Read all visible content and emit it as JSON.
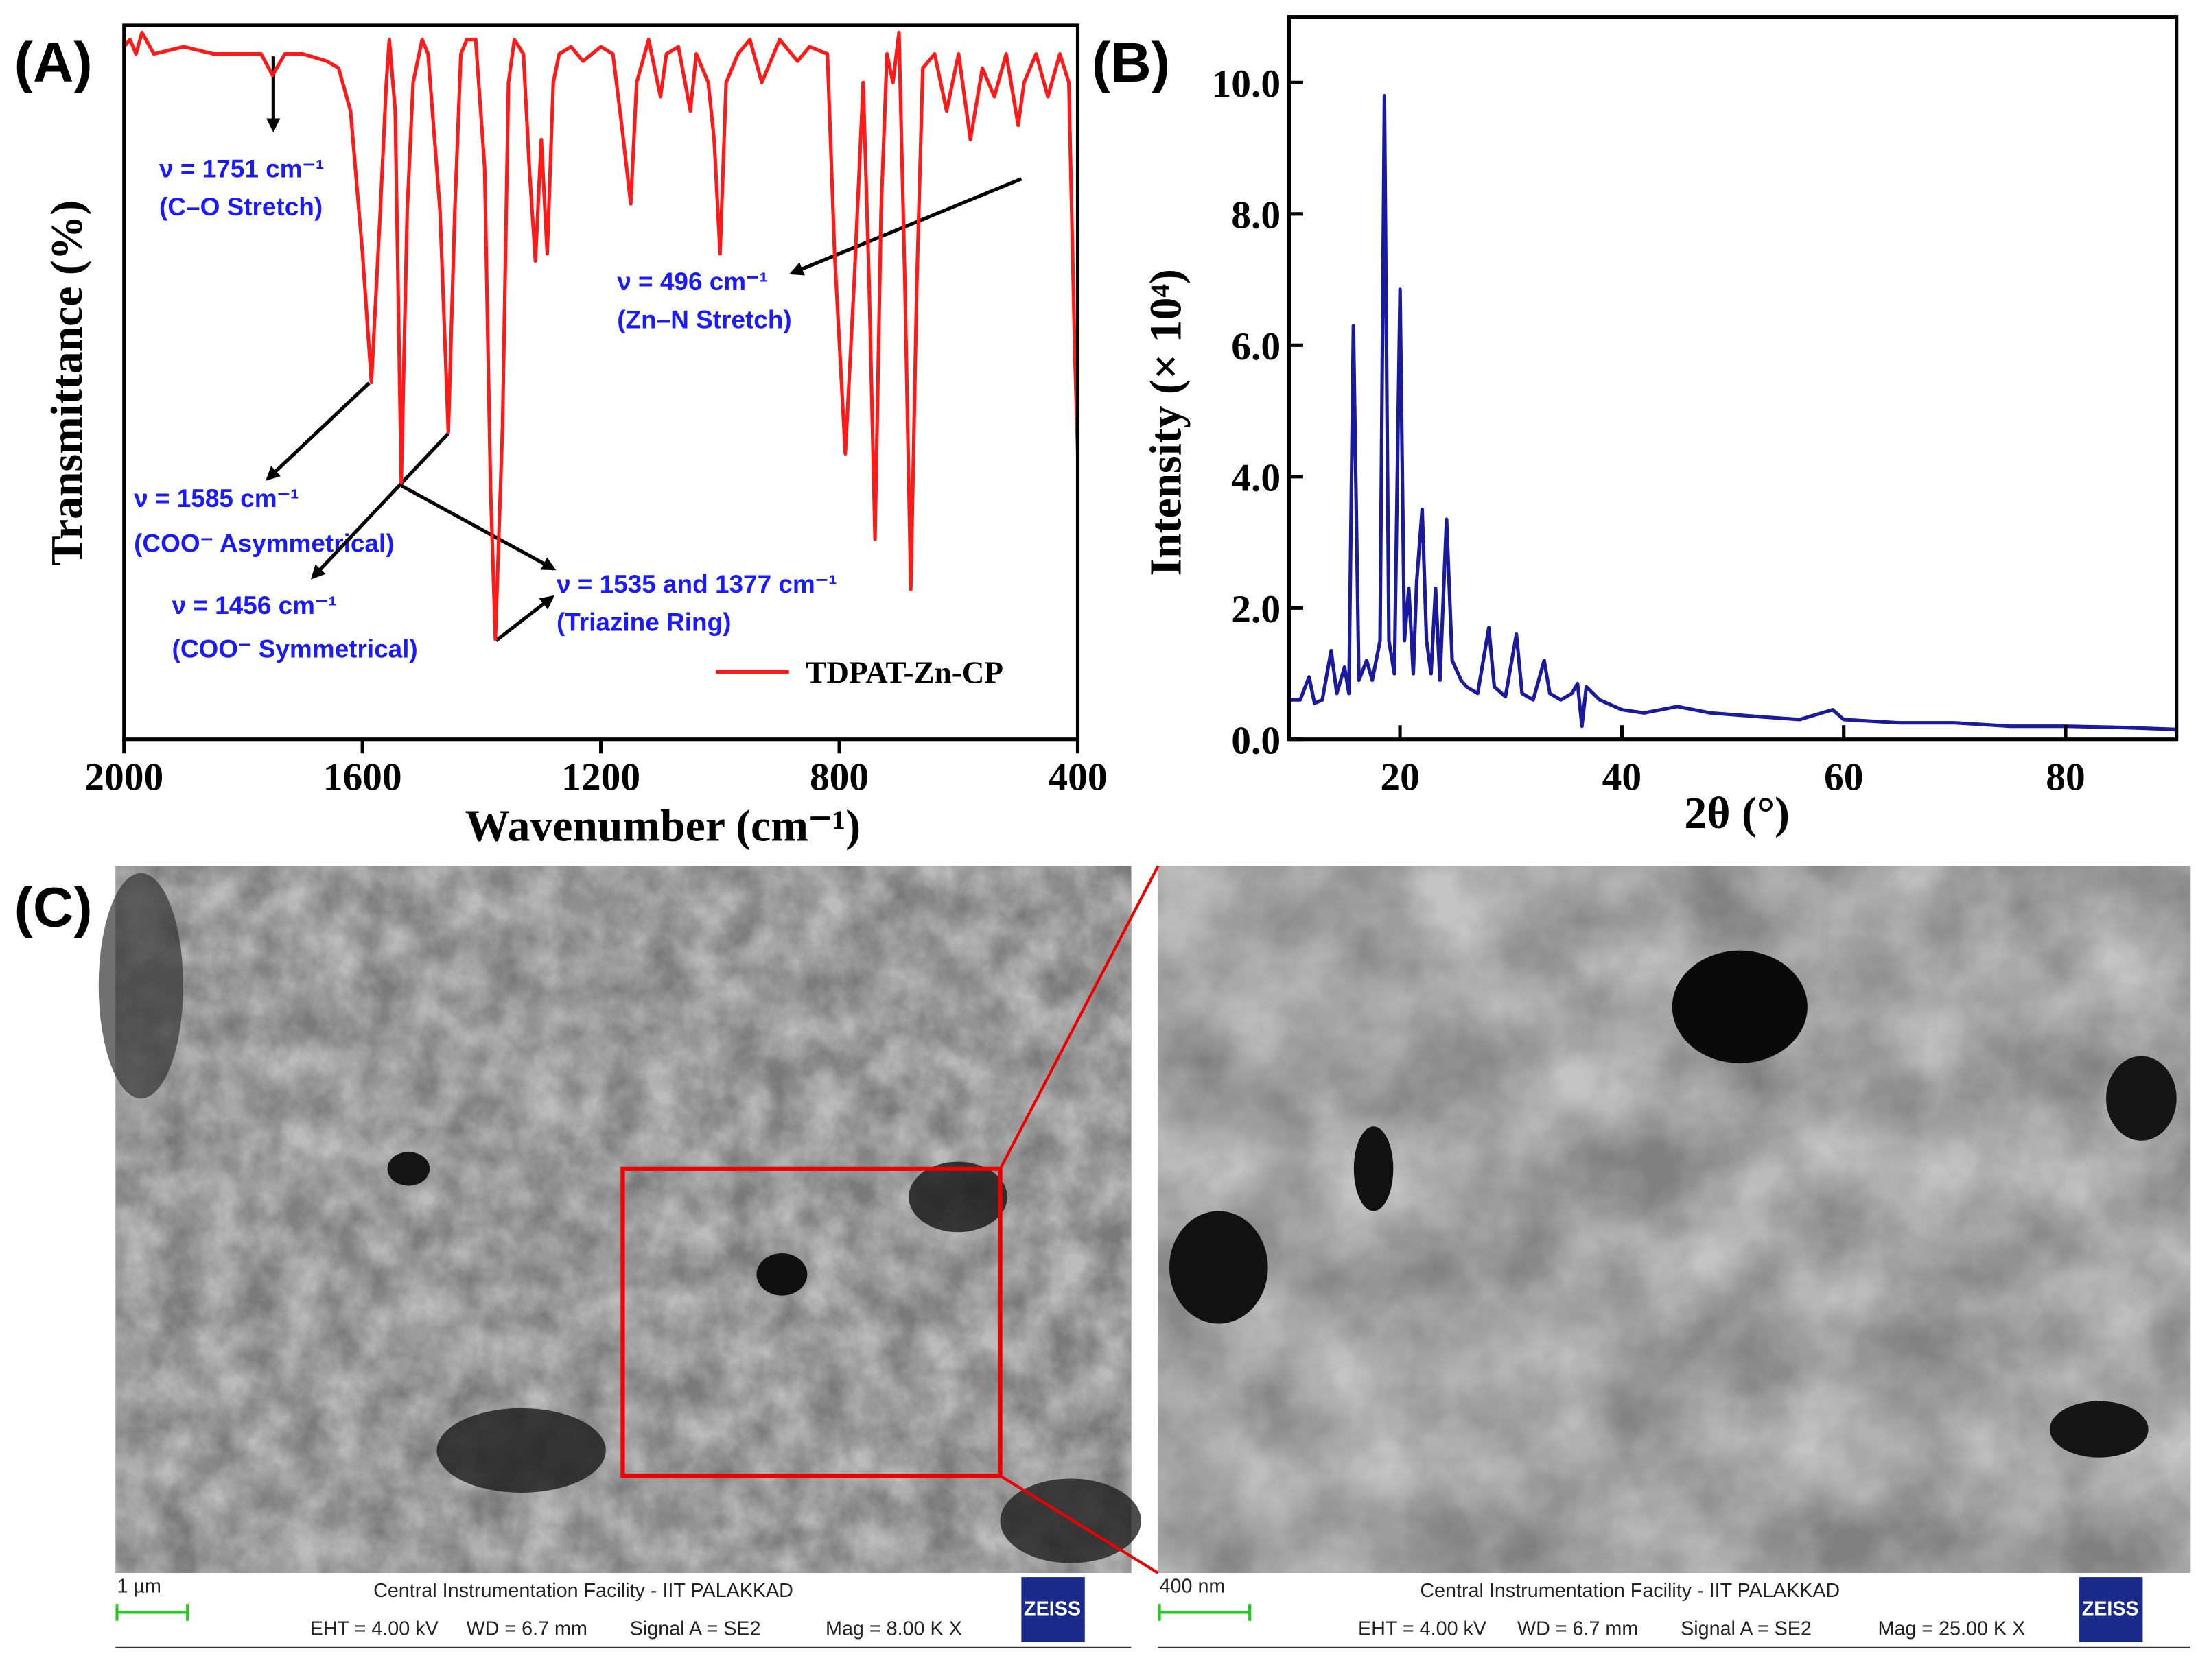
{
  "panel_labels": [
    "(A)",
    "(B)",
    "(C)"
  ],
  "chart_data": [
    {
      "type": "line",
      "x_label": "Wavenumber (cm⁻¹)",
      "y_label": "Transmittance (%)",
      "xlim": [
        2000,
        400
      ],
      "xticks": [
        2000,
        1600,
        1200,
        800,
        400
      ],
      "ylim": [
        0,
        100
      ],
      "legend": "lower right",
      "x": [
        2000,
        1990,
        1980,
        1970,
        1950,
        1900,
        1850,
        1800,
        1770,
        1751,
        1730,
        1700,
        1660,
        1640,
        1620,
        1600,
        1585,
        1570,
        1560,
        1555,
        1545,
        1535,
        1525,
        1515,
        1500,
        1490,
        1470,
        1456,
        1445,
        1435,
        1425,
        1410,
        1395,
        1385,
        1377,
        1365,
        1355,
        1345,
        1330,
        1320,
        1310,
        1300,
        1290,
        1280,
        1270,
        1250,
        1230,
        1200,
        1180,
        1165,
        1150,
        1140,
        1120,
        1100,
        1090,
        1070,
        1050,
        1040,
        1020,
        1010,
        1000,
        990,
        970,
        950,
        930,
        900,
        870,
        850,
        820,
        808,
        790,
        775,
        760,
        750,
        740,
        730,
        720,
        710,
        700,
        690,
        680,
        670,
        660,
        640,
        620,
        600,
        580,
        560,
        540,
        520,
        500,
        490,
        470,
        450,
        430,
        415,
        405,
        400
      ],
      "series": [
        {
          "name": "TDPAT-Zn-CP",
          "color": "#ff1a1a",
          "values": [
            97,
            98,
            96,
            99,
            96,
            97,
            96,
            96,
            96,
            93,
            96,
            96,
            95,
            94,
            88,
            68,
            50,
            74,
            92,
            98,
            88,
            36,
            74,
            92,
            98,
            96,
            74,
            43,
            74,
            96,
            98,
            98,
            80,
            35,
            14,
            44,
            92,
            98,
            96,
            80,
            67,
            84,
            68,
            92,
            96,
            97,
            95,
            97,
            96,
            86,
            75,
            92,
            98,
            90,
            96,
            97,
            88,
            96,
            92,
            84,
            68,
            92,
            96,
            98,
            92,
            98,
            95,
            97,
            96,
            68,
            40,
            64,
            92,
            64,
            28,
            74,
            96,
            92,
            99,
            64,
            21,
            64,
            94,
            96,
            88,
            96,
            84,
            94,
            90,
            96,
            86,
            92,
            96,
            90,
            96,
            92,
            54,
            40
          ]
        }
      ]
    },
    {
      "type": "line",
      "x_label": "2θ (°)",
      "y_label": "Intensity (× 10⁴)",
      "xlim": [
        10,
        90
      ],
      "xticks": [
        20,
        40,
        60,
        80
      ],
      "ylim": [
        0,
        11
      ],
      "yticks": [
        {
          "value": 0,
          "label": "0.0"
        },
        {
          "value": 2,
          "label": "2.0"
        },
        {
          "value": 4,
          "label": "4.0"
        },
        {
          "value": 6,
          "label": "6.0"
        },
        {
          "value": 8,
          "label": "8.0"
        },
        {
          "value": 10,
          "label": "10.0"
        }
      ],
      "color": "#1a1a9e",
      "x": [
        10,
        11,
        11.8,
        12.3,
        13,
        13.8,
        14.3,
        15,
        15.4,
        15.8,
        16.3,
        17,
        17.5,
        18.2,
        18.6,
        19,
        19.5,
        20,
        20.4,
        20.8,
        21.2,
        21.5,
        22,
        22.4,
        22.8,
        23.2,
        23.6,
        24.2,
        24.7,
        25.5,
        26,
        27,
        28,
        28.5,
        29.5,
        30.5,
        31,
        32,
        33,
        33.5,
        34.5,
        35.5,
        36,
        36.4,
        36.8,
        38,
        40,
        42,
        45,
        48,
        52,
        56,
        59,
        60,
        65,
        70,
        75,
        80,
        85,
        90
      ],
      "values": [
        0.6,
        0.6,
        0.95,
        0.55,
        0.6,
        1.35,
        0.7,
        1.1,
        0.7,
        6.3,
        0.9,
        1.2,
        0.9,
        1.5,
        9.8,
        1.5,
        1.0,
        6.85,
        1.5,
        2.3,
        1.0,
        2.4,
        3.5,
        1.5,
        1.0,
        2.3,
        0.9,
        3.35,
        1.2,
        0.9,
        0.8,
        0.7,
        1.7,
        0.8,
        0.65,
        1.6,
        0.7,
        0.6,
        1.2,
        0.7,
        0.6,
        0.7,
        0.85,
        0.2,
        0.8,
        0.6,
        0.45,
        0.4,
        0.5,
        0.4,
        0.35,
        0.3,
        0.45,
        0.3,
        0.25,
        0.25,
        0.2,
        0.2,
        0.18,
        0.15
      ]
    }
  ],
  "annotations": [
    "ν = 1751 cm⁻¹",
    "(C–O Stretch)",
    "ν = 496 cm⁻¹",
    "(Zn–N Stretch)",
    "ν = 1585 cm⁻¹",
    "(COO⁻ Asymmetrical)",
    "ν = 1456 cm⁻¹",
    "(COO⁻ Symmetrical)",
    "ν = 1535 and  1377 cm⁻¹",
    "(Triazine Ring)"
  ],
  "sem_panels": [
    {
      "scale_bar": "1 µm",
      "facility": "Central Instrumentation Facility - IIT PALAKKAD",
      "eht": "EHT =  4.00 kV",
      "wd": "WD =  6.7 mm",
      "signal": "Signal A = SE2",
      "mag": "Mag =   8.00 K X",
      "logo": "ZEISS"
    },
    {
      "scale_bar": "400 nm",
      "facility": "Central Instrumentation Facility - IIT PALAKKAD",
      "eht": "EHT =  4.00 kV",
      "wd": "WD =  6.7 mm",
      "signal": "Signal A = SE2",
      "mag": "Mag =   25.00 K X",
      "logo": "ZEISS"
    }
  ]
}
